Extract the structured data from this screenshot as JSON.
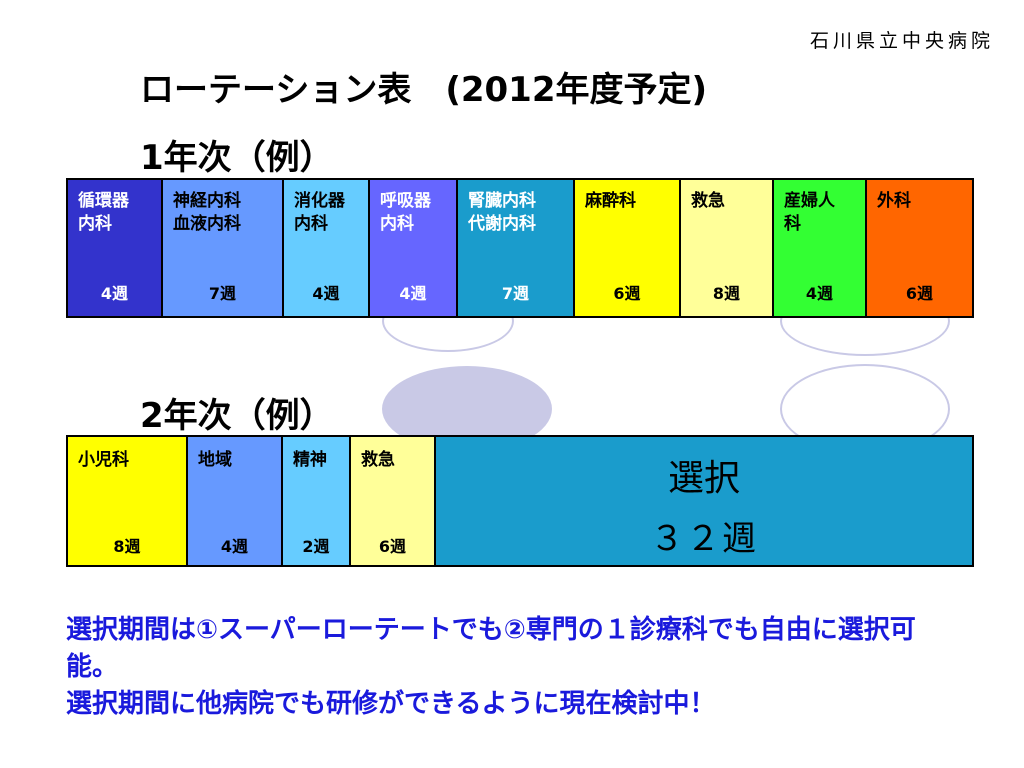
{
  "hospital_name": "石川県立中央病院",
  "title": "ローテーション表　(2012年度予定)",
  "year1": {
    "label": "1年次（例）",
    "rotations": [
      {
        "name": "循環器\n内科",
        "weeks": "4週",
        "color": "#3333cc",
        "text": "white"
      },
      {
        "name": "神経内科\n血液内科",
        "weeks": "7週",
        "color": "#6699ff",
        "text": "black"
      },
      {
        "name": "消化器\n内科",
        "weeks": "4週",
        "color": "#66ccff",
        "text": "black"
      },
      {
        "name": "呼吸器\n内科",
        "weeks": "4週",
        "color": "#6666ff",
        "text": "white"
      },
      {
        "name": "腎臓内科\n代謝内科",
        "weeks": "7週",
        "color": "#1a9ccc",
        "text": "white"
      },
      {
        "name": "麻酔科",
        "weeks": "6週",
        "color": "#ffff00",
        "text": "black"
      },
      {
        "name": "救急",
        "weeks": "8週",
        "color": "#ffff99",
        "text": "black"
      },
      {
        "name": "産婦人\n科",
        "weeks": "4週",
        "color": "#33ff33",
        "text": "black"
      },
      {
        "name": "外科",
        "weeks": "6週",
        "color": "#ff6600",
        "text": "black"
      }
    ]
  },
  "year2": {
    "label": "2年次（例）",
    "rotations": [
      {
        "name": "小児科",
        "weeks": "8週",
        "color": "#ffff00",
        "text": "black"
      },
      {
        "name": "地域",
        "weeks": "4週",
        "color": "#6699ff",
        "text": "black"
      },
      {
        "name": "精神",
        "weeks": "2週",
        "color": "#66ccff",
        "text": "black"
      },
      {
        "name": "救急",
        "weeks": "6週",
        "color": "#ffff99",
        "text": "black"
      }
    ],
    "elective": {
      "label": "選択",
      "weeks": "３２週",
      "color": "#1a9ccc"
    }
  },
  "notes": [
    "選択期間は①スーパーローテートでも②専門の１診療科でも自由に選択可能。",
    "選択期間に他病院でも研修ができるように現在検討中！"
  ]
}
